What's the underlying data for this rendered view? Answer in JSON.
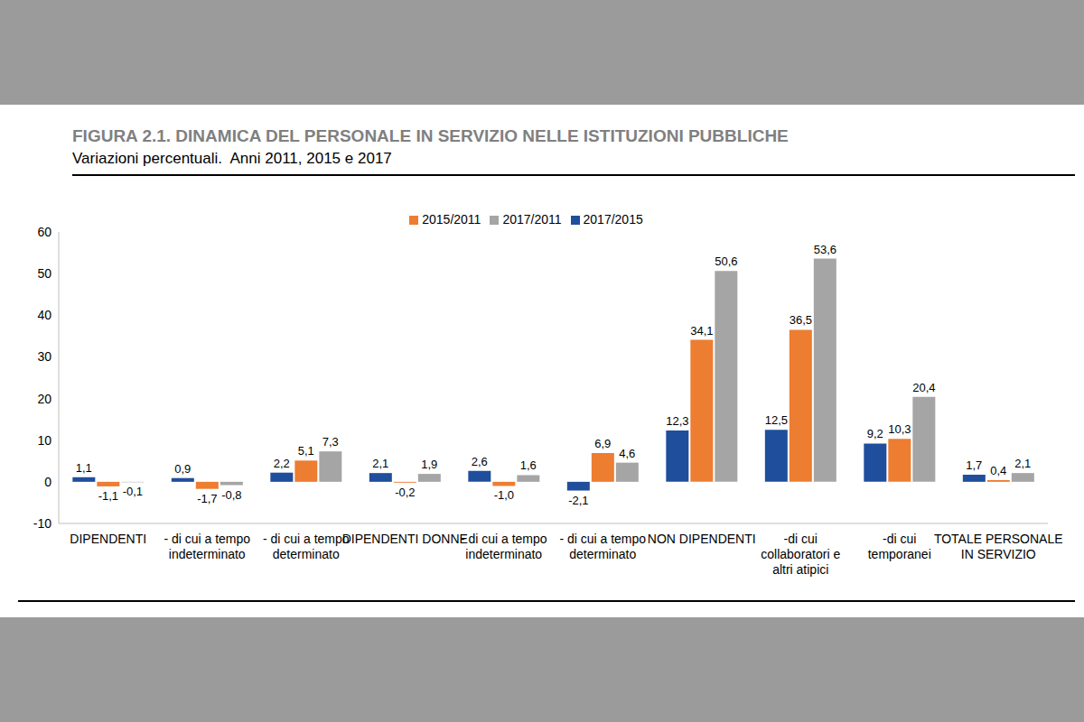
{
  "chart_data": {
    "type": "bar",
    "title": "FIGURA 2.1. DINAMICA DEL PERSONALE IN SERVIZIO NELLE ISTITUZIONI PUBBLICHE",
    "subtitle": "Variazioni percentuali.  Anni 2011, 2015 e 2017",
    "categories": [
      "DIPENDENTI",
      "- di cui a tempo indeterminato",
      "- di cui a tempo determinato",
      "DIPENDENTI DONNE",
      "- di cui a tempo indeterminato",
      "- di cui a tempo determinato",
      "NON DIPENDENTI",
      "-di cui collaboratori e altri atipici",
      "-di cui temporanei",
      "TOTALE PERSONALE IN SERVIZIO"
    ],
    "series": [
      {
        "name": "2017/2015",
        "color": "#1f4e9c",
        "values": [
          1.1,
          0.9,
          2.2,
          2.1,
          2.6,
          -2.1,
          12.3,
          12.5,
          9.2,
          1.7
        ],
        "value_labels": [
          "1,1",
          "0,9",
          "2,2",
          "2,1",
          "2,6",
          "-2,1",
          "12,3",
          "12,5",
          "9,2",
          "1,7"
        ]
      },
      {
        "name": "2015/2011",
        "color": "#ed7d31",
        "values": [
          -1.1,
          -1.7,
          5.1,
          -0.2,
          -1.0,
          6.9,
          34.1,
          36.5,
          10.3,
          0.4
        ],
        "value_labels": [
          "-1,1",
          "-1,7",
          "5,1",
          "-0,2",
          "-1,0",
          "6,9",
          "34,1",
          "36,5",
          "10,3",
          "0,4"
        ]
      },
      {
        "name": "2017/2011",
        "color": "#a5a5a5",
        "values": [
          -0.1,
          -0.8,
          7.3,
          1.9,
          1.6,
          4.6,
          50.6,
          53.6,
          20.4,
          2.1
        ],
        "value_labels": [
          "-0,1",
          "-0,8",
          "7,3",
          "1,9",
          "1,6",
          "4,6",
          "50,6",
          "53,6",
          "20,4",
          "2,1"
        ]
      }
    ],
    "ylim": [
      -10,
      60
    ],
    "yticks": [
      -10,
      0,
      10,
      20,
      30,
      40,
      50,
      60
    ],
    "grid": false,
    "legend": "top",
    "data_labels": true
  }
}
